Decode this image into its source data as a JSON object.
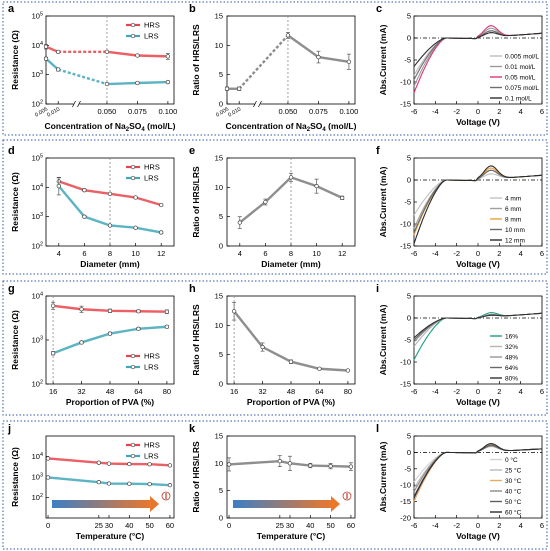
{
  "rows": [
    {
      "id": "row-concentration"
    },
    {
      "id": "row-diameter"
    },
    {
      "id": "row-pva"
    },
    {
      "id": "row-temperature"
    }
  ],
  "chart_data": [
    {
      "panel": "a",
      "type": "line",
      "ylabel": "Resistance (Ω)",
      "xlabel_main": "Concentration of Na",
      "xlabel_sub": "2",
      "xlabel_mid": "SO",
      "xlabel_sub2": "4",
      "xlabel_tail": " (mol/L)",
      "yscale": "log",
      "ylim": [
        100,
        100000
      ],
      "yticks": [
        {
          "v": 100,
          "b": "10",
          "e": "2"
        },
        {
          "v": 1000,
          "b": "10",
          "e": "3"
        },
        {
          "v": 10000,
          "b": "10",
          "e": "4"
        },
        {
          "v": 100000,
          "b": "10",
          "e": "5"
        }
      ],
      "xlim": [
        0,
        0.105
      ],
      "xbreak": [
        0.017,
        0.033
      ],
      "xticks": [
        0,
        0.01,
        0.05,
        0.075,
        0.1
      ],
      "xtick_labels": [
        "0.005",
        "0.010",
        "0.050",
        "0.075",
        "0.100"
      ],
      "xtick_rotated": [
        true,
        true,
        false,
        false,
        false
      ],
      "vline": 0.05,
      "legend": [
        "HRS",
        "LRS"
      ],
      "series": [
        {
          "name": "HRS",
          "color": "#e8434a",
          "x": [
            0,
            0.01,
            0.05,
            0.075,
            0.1
          ],
          "y": [
            9000,
            6000,
            6000,
            4500,
            4200
          ],
          "err": [
            0.08,
            0.04,
            0.03,
            0.03,
            0.1
          ]
        },
        {
          "name": "LRS",
          "color": "#3fa7b8",
          "x": [
            0,
            0.01,
            0.05,
            0.075,
            0.1
          ],
          "y": [
            3500,
            1500,
            480,
            520,
            560
          ],
          "err": [
            0.05,
            0.05,
            0.03,
            0.03,
            0.03
          ]
        }
      ]
    },
    {
      "panel": "b",
      "type": "line",
      "ylabel": "Ratio of HRS/LRS",
      "xlabel_main": "Concentration of Na",
      "xlabel_sub": "2",
      "xlabel_mid": "SO",
      "xlabel_sub2": "4",
      "xlabel_tail": " (mol/L)",
      "ylim": [
        0,
        15
      ],
      "yticks": [
        0,
        5,
        10,
        15
      ],
      "xlim": [
        0,
        0.105
      ],
      "xbreak": [
        0.017,
        0.033
      ],
      "xticks": [
        0,
        0.01,
        0.05,
        0.075,
        0.1
      ],
      "xtick_labels": [
        "0.005",
        "0.010",
        "0.050",
        "0.075",
        "0.100"
      ],
      "xtick_rotated": [
        true,
        true,
        false,
        false,
        false
      ],
      "vline": 0.05,
      "series": [
        {
          "color": "#7a7a7a",
          "x": [
            0,
            0.01,
            0.05,
            0.075,
            0.1
          ],
          "y": [
            2.6,
            2.6,
            11.7,
            8.0,
            7.2
          ],
          "err": [
            0.3,
            0.3,
            0.5,
            1.0,
            1.3
          ]
        }
      ]
    },
    {
      "panel": "c",
      "type": "iv",
      "ylabel": "Abs.Current (mA)",
      "xlabel": "Voltage (V)",
      "xlim": [
        -6,
        6
      ],
      "ylim": [
        -15,
        5
      ],
      "xticks": [
        -6,
        -4,
        -2,
        0,
        2,
        4,
        6
      ],
      "yticks": [
        -15,
        -10,
        -5,
        0,
        5
      ],
      "legend": [
        "0.005 mol/L",
        "0.01 mol/L",
        "0.05 mol/L",
        "0.075 mol/L",
        "0.1 mol/L"
      ],
      "colors": [
        "#bdbdbd",
        "#9c9c9c",
        "#e0357a",
        "#6e6e6e",
        "#2e2e2e"
      ],
      "amp": [
        -8.5,
        -11,
        -12.5,
        -9.5,
        -6.5
      ],
      "peak": [
        1.5,
        2.0,
        2.6,
        1.4,
        1.0
      ]
    },
    {
      "panel": "d",
      "type": "line",
      "ylabel": "Resistance (Ω)",
      "xlabel": "Diameter (mm)",
      "yscale": "log",
      "ylim": [
        100,
        100000
      ],
      "yticks": [
        {
          "v": 100,
          "b": "10",
          "e": "2"
        },
        {
          "v": 1000,
          "b": "10",
          "e": "3"
        },
        {
          "v": 10000,
          "b": "10",
          "e": "4"
        },
        {
          "v": 100000,
          "b": "10",
          "e": "5"
        }
      ],
      "xlim": [
        3,
        13
      ],
      "xticks": [
        4,
        6,
        8,
        10,
        12
      ],
      "xtick_labels": [
        "4",
        "6",
        "8",
        "10",
        "12"
      ],
      "vline": 8,
      "legend": [
        "HRS",
        "LRS"
      ],
      "series": [
        {
          "name": "HRS",
          "color": "#e8434a",
          "x": [
            4,
            6,
            8,
            10,
            12
          ],
          "y": [
            16000,
            8000,
            6000,
            4500,
            2500
          ],
          "err": [
            0.12,
            0.04,
            0.03,
            0.03,
            0.03
          ]
        },
        {
          "name": "LRS",
          "color": "#3fa7b8",
          "x": [
            4,
            6,
            8,
            10,
            12
          ],
          "y": [
            11000,
            1000,
            500,
            420,
            290
          ],
          "err": [
            0.3,
            0.04,
            0.03,
            0.03,
            0.03
          ]
        }
      ]
    },
    {
      "panel": "e",
      "type": "line",
      "ylabel": "Ratio of HRS/LRS",
      "xlabel": "Diameter (mm)",
      "ylim": [
        0,
        15
      ],
      "yticks": [
        0,
        5,
        10,
        15
      ],
      "xlim": [
        3,
        13
      ],
      "xticks": [
        4,
        6,
        8,
        10,
        12
      ],
      "xtick_labels": [
        "4",
        "6",
        "8",
        "10",
        "12"
      ],
      "vline": 8,
      "series": [
        {
          "color": "#7a7a7a",
          "x": [
            4,
            6,
            8,
            10,
            12
          ],
          "y": [
            4.0,
            7.5,
            11.7,
            10.2,
            8.2
          ],
          "err": [
            1.0,
            0.5,
            0.7,
            1.2,
            0.3
          ]
        }
      ]
    },
    {
      "panel": "f",
      "type": "iv",
      "ylabel": "Abs.Current (mA)",
      "xlabel": "Voltage (V)",
      "xlim": [
        -6,
        6
      ],
      "ylim": [
        -15,
        5
      ],
      "xticks": [
        -6,
        -4,
        -2,
        0,
        2,
        4,
        6
      ],
      "yticks": [
        -15,
        -10,
        -5,
        0,
        5
      ],
      "legend": [
        "4 mm",
        "6 mm",
        "8 mm",
        "10 mm",
        "12 mm"
      ],
      "colors": [
        "#c2c2c2",
        "#a0a0a0",
        "#e9a23b",
        "#6a6a6a",
        "#2b2b2b"
      ],
      "amp": [
        -8,
        -11,
        -12.5,
        -12,
        -14.5
      ],
      "peak": [
        1.2,
        2.0,
        2.5,
        2.0,
        3.0
      ]
    },
    {
      "panel": "g",
      "type": "line",
      "ylabel": "Resistance (Ω)",
      "xlabel": "Proportion of PVA (%)",
      "yscale": "log",
      "ylim": [
        100,
        10000
      ],
      "yticks": [
        {
          "v": 100,
          "b": "10",
          "e": "2"
        },
        {
          "v": 1000,
          "b": "10",
          "e": "3"
        },
        {
          "v": 10000,
          "b": "10",
          "e": "4"
        }
      ],
      "xlim": [
        12,
        84
      ],
      "xticks": [
        16,
        32,
        48,
        64,
        80
      ],
      "xtick_labels": [
        "16",
        "32",
        "48",
        "64",
        "80"
      ],
      "vline": 16,
      "legend": [
        "HRS",
        "LRS"
      ],
      "series": [
        {
          "name": "HRS",
          "color": "#e8434a",
          "x": [
            16,
            32,
            48,
            64,
            80
          ],
          "y": [
            6000,
            5000,
            4600,
            4500,
            4400
          ],
          "err": [
            0.08,
            0.07,
            0.04,
            0.03,
            0.04
          ]
        },
        {
          "name": "LRS",
          "color": "#3fa7b8",
          "x": [
            16,
            32,
            48,
            64,
            80
          ],
          "y": [
            500,
            880,
            1400,
            1800,
            2000
          ],
          "err": [
            0.04,
            0.03,
            0.03,
            0.03,
            0.03
          ]
        }
      ]
    },
    {
      "panel": "h",
      "type": "line",
      "ylabel": "Ratio of HRS/LRS",
      "xlabel": "Proportion of PVA (%)",
      "ylim": [
        0,
        15
      ],
      "yticks": [
        0,
        5,
        10,
        15
      ],
      "xlim": [
        12,
        84
      ],
      "xticks": [
        16,
        32,
        48,
        64,
        80
      ],
      "xtick_labels": [
        "16",
        "32",
        "48",
        "64",
        "80"
      ],
      "vline": 16,
      "series": [
        {
          "color": "#7a7a7a",
          "x": [
            16,
            32,
            48,
            64,
            80
          ],
          "y": [
            12.4,
            6.3,
            3.8,
            2.6,
            2.3
          ],
          "err": [
            1.5,
            0.7,
            0.3,
            0.1,
            0.1
          ]
        }
      ]
    },
    {
      "panel": "i",
      "type": "iv",
      "ylabel": "Abs.Current (mA)",
      "xlabel": "Voltage (V)",
      "xlim": [
        -6,
        6
      ],
      "ylim": [
        -15,
        5
      ],
      "xticks": [
        -6,
        -4,
        -2,
        0,
        2,
        4,
        6
      ],
      "yticks": [
        -15,
        -10,
        -5,
        0,
        5
      ],
      "legend": [
        "16%",
        "32%",
        "48%",
        "64%",
        "80%"
      ],
      "colors": [
        "#1f9e86",
        "#b5b5b5",
        "#939393",
        "#6a6a6a",
        "#333333"
      ],
      "amp": [
        -9.5,
        -6.5,
        -5.5,
        -5,
        -4.5
      ],
      "peak": [
        1.0,
        0.6,
        0.5,
        0.5,
        0.4
      ]
    },
    {
      "panel": "j",
      "type": "line",
      "ylabel": "Resistance (Ω)",
      "xlabel": "Temperature (°C)",
      "yscale": "log",
      "ylim": [
        10,
        100000
      ],
      "yticks": [
        {
          "v": 100,
          "b": "10",
          "e": "2"
        },
        {
          "v": 1000,
          "b": "10",
          "e": "3"
        },
        {
          "v": 10000,
          "b": "10",
          "e": "4"
        }
      ],
      "xlim": [
        -1,
        62
      ],
      "xticks": [
        0,
        25,
        30,
        40,
        50,
        60
      ],
      "xtick_labels": [
        "0",
        "25",
        "30",
        "40",
        "50",
        "60"
      ],
      "legend": [
        "HRS",
        "LRS"
      ],
      "series": [
        {
          "name": "HRS",
          "color": "#e8434a",
          "x": [
            0,
            25,
            30,
            40,
            50,
            60
          ],
          "y": [
            8000,
            5000,
            4500,
            4300,
            4200,
            3700
          ],
          "err": [
            0.04,
            0.03,
            0.03,
            0.03,
            0.03,
            0.03
          ]
        },
        {
          "name": "LRS",
          "color": "#3fa7b8",
          "x": [
            0,
            25,
            30,
            40,
            50,
            60
          ],
          "y": [
            950,
            560,
            480,
            470,
            450,
            400
          ],
          "err": [
            0.04,
            0.03,
            0.03,
            0.03,
            0.03,
            0.03
          ]
        }
      ],
      "arrow": true
    },
    {
      "panel": "k",
      "type": "line",
      "ylabel": "Ratio of HRS/LRS",
      "xlabel": "Temperature (°C)",
      "ylim": [
        0,
        15
      ],
      "yticks": [
        0,
        5,
        10,
        15
      ],
      "xlim": [
        -1,
        62
      ],
      "xticks": [
        0,
        25,
        30,
        40,
        50,
        60
      ],
      "xtick_labels": [
        "0",
        "25",
        "30",
        "40",
        "50",
        "60"
      ],
      "series": [
        {
          "color": "#7a7a7a",
          "x": [
            0,
            25,
            30,
            40,
            50,
            60
          ],
          "y": [
            9.8,
            10.4,
            10.0,
            9.6,
            9.5,
            9.4
          ],
          "err": [
            1.2,
            1.0,
            1.3,
            0.4,
            0.5,
            0.7
          ]
        }
      ],
      "arrow": true
    },
    {
      "panel": "l",
      "type": "iv",
      "ylabel": "Abs.Current (mA)",
      "xlabel": "Voltage (V)",
      "xlim": [
        -6,
        6
      ],
      "ylim": [
        -20,
        5
      ],
      "xticks": [
        -6,
        -4,
        -2,
        0,
        2,
        4,
        6
      ],
      "yticks": [
        -20,
        -15,
        -10,
        -5,
        0,
        5
      ],
      "legend": [
        "0 °C",
        "25 °C",
        "30 °C",
        "40 °C",
        "50 °C",
        "60 °C"
      ],
      "colors": [
        "#d2d2d2",
        "#b8b8b8",
        "#e8a96a",
        "#8b8b8b",
        "#606060",
        "#2b2b2b"
      ],
      "amp": [
        -9,
        -11,
        -15,
        -12,
        -13.5,
        -14
      ],
      "peak": [
        2.0,
        1.6,
        2.2,
        1.8,
        2.0,
        2.5
      ]
    }
  ]
}
